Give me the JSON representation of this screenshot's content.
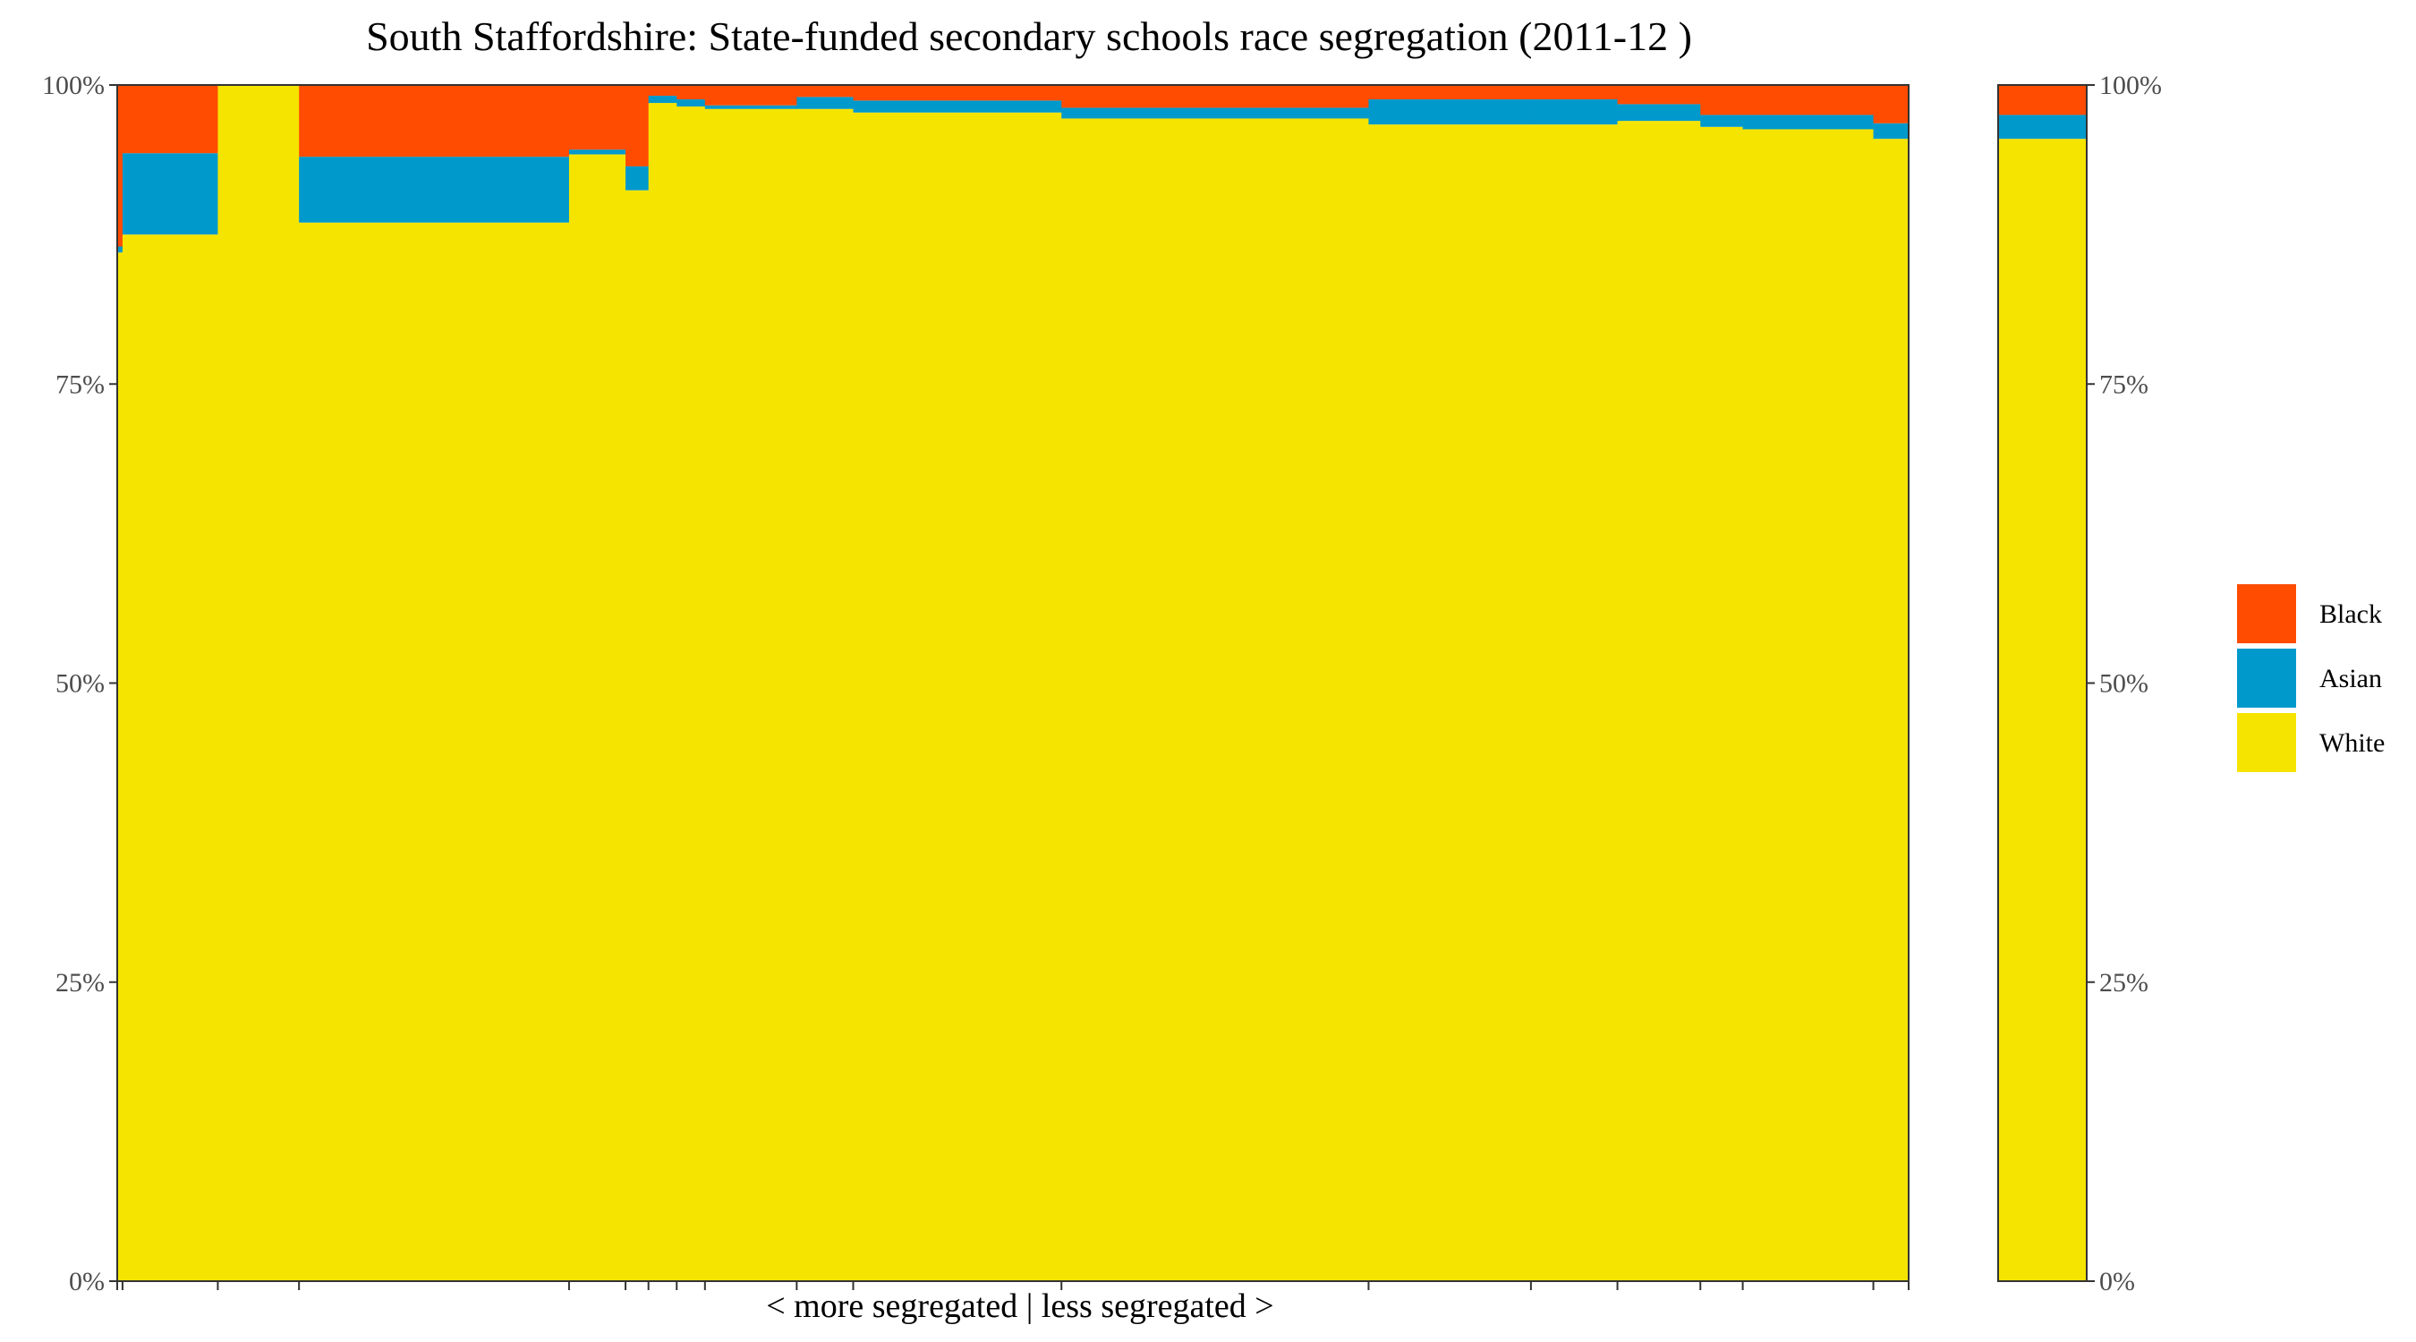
{
  "chart_data": {
    "type": "stacked-bar-variable-width",
    "title": "South Staffordshire: State-funded secondary schools race segregation (2011-12 )",
    "xlabel": "< more segregated | less segregated >",
    "ylabel": "",
    "ylim": [
      0,
      100
    ],
    "y_ticks": [
      "0%",
      "25%",
      "50%",
      "75%",
      "100%"
    ],
    "series_order": [
      "White",
      "Asian",
      "Black"
    ],
    "legend": [
      {
        "name": "Black",
        "color": "#FF4C00"
      },
      {
        "name": "Asian",
        "color": "#0099CC"
      },
      {
        "name": "White",
        "color": "#F5E400"
      }
    ],
    "schools": [
      {
        "width": 3.0,
        "White": 86.0,
        "Asian": 0.5,
        "Black": 13.5
      },
      {
        "width": 54.0,
        "White": 87.5,
        "Asian": 6.8,
        "Black": 5.7
      },
      {
        "width": 46.0,
        "White": 100.0,
        "Asian": 0.0,
        "Black": 0.0
      },
      {
        "width": 153.0,
        "White": 88.5,
        "Asian": 5.5,
        "Black": 6.0
      },
      {
        "width": 32.0,
        "White": 94.2,
        "Asian": 0.4,
        "Black": 5.4
      },
      {
        "width": 13.0,
        "White": 91.2,
        "Asian": 2.0,
        "Black": 6.8
      },
      {
        "width": 16.0,
        "White": 98.5,
        "Asian": 0.6,
        "Black": 0.9
      },
      {
        "width": 16.0,
        "White": 98.2,
        "Asian": 0.6,
        "Black": 1.2
      },
      {
        "width": 52.0,
        "White": 98.0,
        "Asian": 0.3,
        "Black": 1.7
      },
      {
        "width": 32.0,
        "White": 98.0,
        "Asian": 1.0,
        "Black": 1.0
      },
      {
        "width": 118.0,
        "White": 97.7,
        "Asian": 1.0,
        "Black": 1.3
      },
      {
        "width": 174.0,
        "White": 97.2,
        "Asian": 0.9,
        "Black": 1.9
      },
      {
        "width": 92.0,
        "White": 96.7,
        "Asian": 2.1,
        "Black": 1.2
      },
      {
        "width": 49.0,
        "White": 96.7,
        "Asian": 2.1,
        "Black": 1.2
      },
      {
        "width": 47.0,
        "White": 97.0,
        "Asian": 1.4,
        "Black": 1.6
      },
      {
        "width": 24.0,
        "White": 96.5,
        "Asian": 1.0,
        "Black": 2.5
      },
      {
        "width": 74.0,
        "White": 96.3,
        "Asian": 1.2,
        "Black": 2.5
      },
      {
        "width": 20.0,
        "White": 95.5,
        "Asian": 1.3,
        "Black": 3.2
      }
    ],
    "overall": {
      "White": 95.5,
      "Asian": 2.0,
      "Black": 2.5
    }
  }
}
